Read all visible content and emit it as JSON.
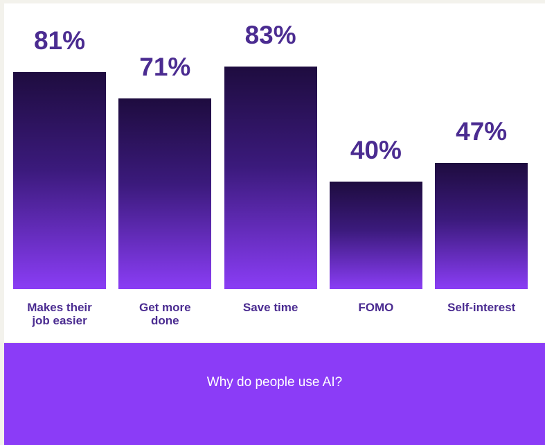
{
  "chart_data": {
    "type": "bar",
    "title": "Why do people use AI?",
    "categories": [
      "Makes their job easier",
      "Get more done",
      "Save time",
      "FOMO",
      "Self-interest"
    ],
    "values": [
      81,
      71,
      83,
      40,
      47
    ],
    "value_labels": [
      "81%",
      "71%",
      "83%",
      "40%",
      "47%"
    ]
  }
}
